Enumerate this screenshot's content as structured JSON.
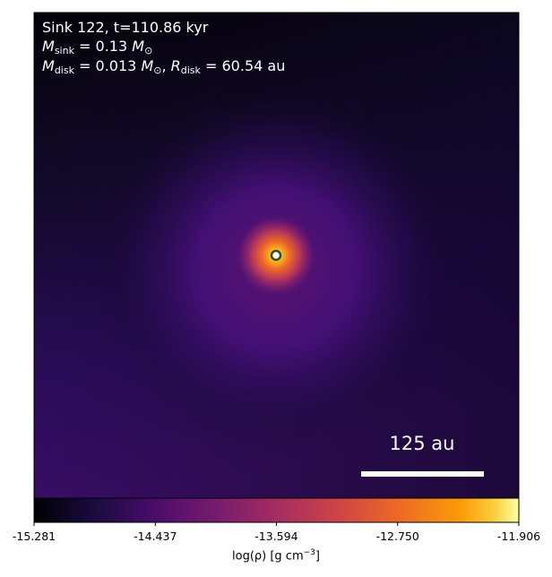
{
  "chart_data": {
    "type": "heatmap",
    "colormap": "inferno",
    "annotations": {
      "line1": "Sink 122, t=110.86 kyr",
      "m_sink_label": "M",
      "m_sink_sub": "sink",
      "m_sink_value": "= 0.13",
      "m_sun_symbol": "M",
      "sun_sub": "⊙",
      "m_disk_label": "M",
      "m_disk_sub": "disk",
      "m_disk_value": "= 0.013",
      "r_disk_label": "R",
      "r_disk_sub": "disk",
      "r_disk_value": "= 60.54 au"
    },
    "scale_bar_label": "125 au",
    "colorbar": {
      "range": [
        -15.281,
        -11.906
      ],
      "ticks": [
        "-15.281",
        "-14.437",
        "-13.594",
        "-12.750",
        "-11.906"
      ],
      "label_prefix": "log(ρ) [g cm",
      "label_exp": "−3",
      "label_suffix": "]"
    },
    "sink_marker_color": "#2f4f2f"
  }
}
